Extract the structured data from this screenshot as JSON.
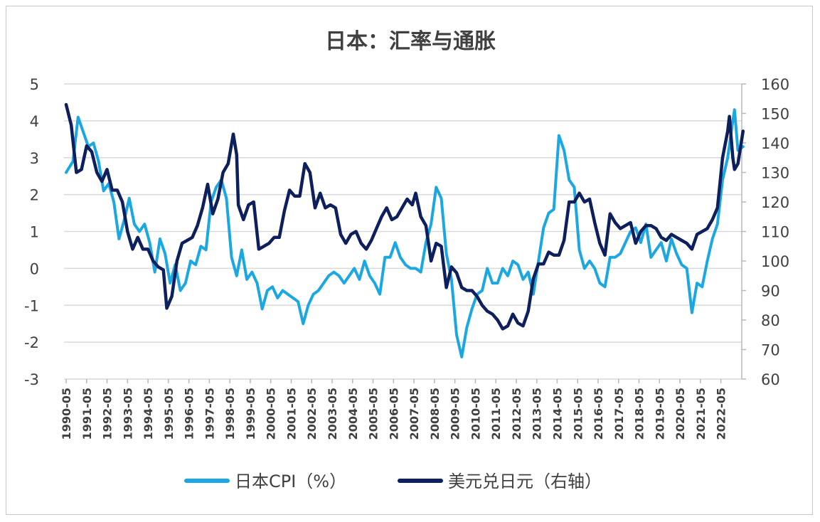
{
  "chart_data": {
    "type": "line",
    "title": "日本：汇率与通胀",
    "x_tick_labels": [
      "1990-05",
      "1991-05",
      "1992-05",
      "1993-05",
      "1994-05",
      "1995-05",
      "1996-05",
      "1997-05",
      "1998-05",
      "1999-05",
      "2000-05",
      "2001-05",
      "2002-05",
      "2003-05",
      "2004-05",
      "2005-05",
      "2006-05",
      "2007-05",
      "2008-05",
      "2009-05",
      "2010-05",
      "2011-05",
      "2012-05",
      "2013-05",
      "2014-05",
      "2015-05",
      "2016-05",
      "2017-05",
      "2018-05",
      "2019-05",
      "2020-05",
      "2021-05",
      "2022-05"
    ],
    "x_start": "1990-05",
    "y_left": {
      "range": [
        -3,
        5
      ],
      "ticks": [
        -3,
        -2,
        -1,
        0,
        1,
        2,
        3,
        4,
        5
      ]
    },
    "y_right": {
      "range": [
        60,
        160
      ],
      "ticks": [
        60,
        70,
        80,
        90,
        100,
        110,
        120,
        130,
        140,
        150,
        160
      ]
    },
    "grid": "horizontal",
    "legend_position": "bottom",
    "series": [
      {
        "name": "日本CPI（%）",
        "axis": "left",
        "color": "#1ba7e2",
        "points": [
          [
            "1990-05",
            2.6
          ],
          [
            "1990-09",
            2.9
          ],
          [
            "1990-12",
            4.1
          ],
          [
            "1991-03",
            3.7
          ],
          [
            "1991-06",
            3.3
          ],
          [
            "1991-09",
            3.4
          ],
          [
            "1991-12",
            2.9
          ],
          [
            "1992-03",
            2.1
          ],
          [
            "1992-06",
            2.3
          ],
          [
            "1992-09",
            1.8
          ],
          [
            "1992-12",
            0.8
          ],
          [
            "1993-03",
            1.3
          ],
          [
            "1993-06",
            1.9
          ],
          [
            "1993-09",
            1.2
          ],
          [
            "1993-12",
            1.0
          ],
          [
            "1994-03",
            1.2
          ],
          [
            "1994-06",
            0.7
          ],
          [
            "1994-09",
            -0.1
          ],
          [
            "1994-12",
            0.8
          ],
          [
            "1995-03",
            0.4
          ],
          [
            "1995-06",
            -0.4
          ],
          [
            "1995-09",
            0.1
          ],
          [
            "1995-12",
            -0.6
          ],
          [
            "1996-03",
            -0.4
          ],
          [
            "1996-06",
            0.2
          ],
          [
            "1996-09",
            0.1
          ],
          [
            "1996-12",
            0.6
          ],
          [
            "1997-03",
            0.5
          ],
          [
            "1997-06",
            1.8
          ],
          [
            "1997-09",
            2.2
          ],
          [
            "1997-12",
            2.4
          ],
          [
            "1998-03",
            1.9
          ],
          [
            "1998-06",
            0.3
          ],
          [
            "1998-09",
            -0.2
          ],
          [
            "1998-12",
            0.5
          ],
          [
            "1999-03",
            -0.3
          ],
          [
            "1999-06",
            -0.1
          ],
          [
            "1999-09",
            -0.4
          ],
          [
            "1999-12",
            -1.1
          ],
          [
            "2000-03",
            -0.6
          ],
          [
            "2000-06",
            -0.5
          ],
          [
            "2000-09",
            -0.8
          ],
          [
            "2000-12",
            -0.6
          ],
          [
            "2001-03",
            -0.7
          ],
          [
            "2001-06",
            -0.8
          ],
          [
            "2001-09",
            -0.9
          ],
          [
            "2001-12",
            -1.5
          ],
          [
            "2002-03",
            -1.0
          ],
          [
            "2002-06",
            -0.7
          ],
          [
            "2002-09",
            -0.6
          ],
          [
            "2002-12",
            -0.4
          ],
          [
            "2003-03",
            -0.2
          ],
          [
            "2003-06",
            -0.1
          ],
          [
            "2003-09",
            -0.2
          ],
          [
            "2003-12",
            -0.4
          ],
          [
            "2004-03",
            -0.2
          ],
          [
            "2004-06",
            0.0
          ],
          [
            "2004-09",
            -0.3
          ],
          [
            "2004-12",
            0.2
          ],
          [
            "2005-03",
            -0.2
          ],
          [
            "2005-06",
            -0.4
          ],
          [
            "2005-09",
            -0.7
          ],
          [
            "2005-12",
            0.3
          ],
          [
            "2006-03",
            0.3
          ],
          [
            "2006-06",
            0.7
          ],
          [
            "2006-09",
            0.3
          ],
          [
            "2006-12",
            0.1
          ],
          [
            "2007-03",
            0.0
          ],
          [
            "2007-06",
            0.0
          ],
          [
            "2007-09",
            -0.1
          ],
          [
            "2007-12",
            0.7
          ],
          [
            "2008-03",
            1.2
          ],
          [
            "2008-06",
            2.2
          ],
          [
            "2008-09",
            1.9
          ],
          [
            "2008-12",
            0.4
          ],
          [
            "2009-03",
            -0.3
          ],
          [
            "2009-06",
            -1.8
          ],
          [
            "2009-09",
            -2.4
          ],
          [
            "2009-12",
            -1.6
          ],
          [
            "2010-03",
            -1.1
          ],
          [
            "2010-06",
            -0.7
          ],
          [
            "2010-09",
            -0.6
          ],
          [
            "2010-12",
            0.0
          ],
          [
            "2011-03",
            -0.4
          ],
          [
            "2011-06",
            -0.4
          ],
          [
            "2011-09",
            0.0
          ],
          [
            "2011-12",
            -0.2
          ],
          [
            "2012-03",
            0.2
          ],
          [
            "2012-06",
            0.1
          ],
          [
            "2012-09",
            -0.3
          ],
          [
            "2012-12",
            -0.1
          ],
          [
            "2013-03",
            -0.7
          ],
          [
            "2013-06",
            0.2
          ],
          [
            "2013-09",
            1.1
          ],
          [
            "2013-12",
            1.5
          ],
          [
            "2014-03",
            1.6
          ],
          [
            "2014-06",
            3.6
          ],
          [
            "2014-09",
            3.2
          ],
          [
            "2014-12",
            2.4
          ],
          [
            "2015-03",
            2.2
          ],
          [
            "2015-06",
            0.5
          ],
          [
            "2015-09",
            0.0
          ],
          [
            "2015-12",
            0.2
          ],
          [
            "2016-03",
            0.0
          ],
          [
            "2016-06",
            -0.4
          ],
          [
            "2016-09",
            -0.5
          ],
          [
            "2016-12",
            0.3
          ],
          [
            "2017-03",
            0.3
          ],
          [
            "2017-06",
            0.4
          ],
          [
            "2017-09",
            0.7
          ],
          [
            "2017-12",
            1.0
          ],
          [
            "2018-03",
            1.1
          ],
          [
            "2018-06",
            0.7
          ],
          [
            "2018-09",
            1.2
          ],
          [
            "2018-12",
            0.3
          ],
          [
            "2019-03",
            0.5
          ],
          [
            "2019-06",
            0.7
          ],
          [
            "2019-09",
            0.2
          ],
          [
            "2019-12",
            0.8
          ],
          [
            "2020-03",
            0.4
          ],
          [
            "2020-06",
            0.1
          ],
          [
            "2020-09",
            0.0
          ],
          [
            "2020-12",
            -1.2
          ],
          [
            "2021-03",
            -0.4
          ],
          [
            "2021-06",
            -0.5
          ],
          [
            "2021-09",
            0.2
          ],
          [
            "2021-12",
            0.8
          ],
          [
            "2022-03",
            1.2
          ],
          [
            "2022-06",
            2.4
          ],
          [
            "2022-09",
            3.0
          ],
          [
            "2022-12",
            4.0
          ],
          [
            "2023-01",
            4.3
          ],
          [
            "2023-03",
            3.2
          ],
          [
            "2023-06",
            3.3
          ]
        ]
      },
      {
        "name": "美元兑日元（右轴）",
        "axis": "right",
        "color": "#0d1f5c",
        "points": [
          [
            "1990-05",
            153
          ],
          [
            "1990-08",
            146
          ],
          [
            "1990-11",
            130
          ],
          [
            "1991-02",
            131
          ],
          [
            "1991-05",
            139
          ],
          [
            "1991-08",
            137
          ],
          [
            "1991-11",
            130
          ],
          [
            "1992-02",
            127
          ],
          [
            "1992-05",
            131
          ],
          [
            "1992-08",
            124
          ],
          [
            "1992-11",
            124
          ],
          [
            "1993-02",
            120
          ],
          [
            "1993-05",
            110
          ],
          [
            "1993-08",
            104
          ],
          [
            "1993-11",
            108
          ],
          [
            "1994-02",
            104
          ],
          [
            "1994-05",
            104
          ],
          [
            "1994-08",
            100
          ],
          [
            "1994-11",
            98
          ],
          [
            "1995-02",
            97
          ],
          [
            "1995-04",
            84
          ],
          [
            "1995-07",
            88
          ],
          [
            "1995-10",
            100
          ],
          [
            "1996-01",
            106
          ],
          [
            "1996-04",
            107
          ],
          [
            "1996-07",
            108
          ],
          [
            "1996-10",
            112
          ],
          [
            "1997-01",
            118
          ],
          [
            "1997-04",
            126
          ],
          [
            "1997-07",
            116
          ],
          [
            "1997-10",
            121
          ],
          [
            "1998-01",
            130
          ],
          [
            "1998-04",
            133
          ],
          [
            "1998-07",
            143
          ],
          [
            "1998-09",
            136
          ],
          [
            "1998-10",
            119
          ],
          [
            "1999-01",
            114
          ],
          [
            "1999-04",
            119
          ],
          [
            "1999-07",
            120
          ],
          [
            "1999-10",
            104
          ],
          [
            "2000-01",
            105
          ],
          [
            "2000-04",
            106
          ],
          [
            "2000-07",
            108
          ],
          [
            "2000-10",
            108
          ],
          [
            "2001-01",
            117
          ],
          [
            "2001-04",
            124
          ],
          [
            "2001-07",
            122
          ],
          [
            "2001-10",
            122
          ],
          [
            "2002-01",
            133
          ],
          [
            "2002-04",
            130
          ],
          [
            "2002-07",
            118
          ],
          [
            "2002-10",
            123
          ],
          [
            "2003-01",
            118
          ],
          [
            "2003-04",
            119
          ],
          [
            "2003-07",
            118
          ],
          [
            "2003-10",
            109
          ],
          [
            "2004-01",
            106
          ],
          [
            "2004-04",
            109
          ],
          [
            "2004-07",
            110
          ],
          [
            "2004-10",
            106
          ],
          [
            "2005-01",
            104
          ],
          [
            "2005-04",
            107
          ],
          [
            "2005-07",
            111
          ],
          [
            "2005-10",
            115
          ],
          [
            "2006-01",
            118
          ],
          [
            "2006-04",
            114
          ],
          [
            "2006-07",
            115
          ],
          [
            "2006-10",
            118
          ],
          [
            "2007-01",
            121
          ],
          [
            "2007-04",
            119
          ],
          [
            "2007-06",
            123
          ],
          [
            "2007-09",
            115
          ],
          [
            "2007-12",
            112
          ],
          [
            "2008-03",
            100
          ],
          [
            "2008-06",
            106
          ],
          [
            "2008-09",
            105
          ],
          [
            "2008-12",
            91
          ],
          [
            "2009-03",
            98
          ],
          [
            "2009-06",
            96
          ],
          [
            "2009-09",
            91
          ],
          [
            "2009-12",
            90
          ],
          [
            "2010-03",
            90
          ],
          [
            "2010-06",
            88
          ],
          [
            "2010-09",
            85
          ],
          [
            "2010-12",
            83
          ],
          [
            "2011-03",
            82
          ],
          [
            "2011-06",
            80
          ],
          [
            "2011-09",
            77
          ],
          [
            "2011-12",
            78
          ],
          [
            "2012-03",
            82
          ],
          [
            "2012-06",
            79
          ],
          [
            "2012-09",
            78
          ],
          [
            "2012-12",
            83
          ],
          [
            "2013-03",
            94
          ],
          [
            "2013-06",
            99
          ],
          [
            "2013-09",
            99
          ],
          [
            "2013-12",
            103
          ],
          [
            "2014-03",
            102
          ],
          [
            "2014-06",
            102
          ],
          [
            "2014-09",
            107
          ],
          [
            "2014-12",
            120
          ],
          [
            "2015-03",
            120
          ],
          [
            "2015-06",
            123
          ],
          [
            "2015-09",
            120
          ],
          [
            "2015-12",
            121
          ],
          [
            "2016-03",
            113
          ],
          [
            "2016-06",
            106
          ],
          [
            "2016-09",
            102
          ],
          [
            "2016-12",
            116
          ],
          [
            "2017-03",
            113
          ],
          [
            "2017-06",
            111
          ],
          [
            "2017-09",
            112
          ],
          [
            "2017-12",
            113
          ],
          [
            "2018-03",
            106
          ],
          [
            "2018-06",
            110
          ],
          [
            "2018-09",
            112
          ],
          [
            "2018-12",
            112
          ],
          [
            "2019-03",
            111
          ],
          [
            "2019-06",
            108
          ],
          [
            "2019-09",
            107
          ],
          [
            "2019-12",
            109
          ],
          [
            "2020-03",
            108
          ],
          [
            "2020-06",
            107
          ],
          [
            "2020-09",
            106
          ],
          [
            "2020-12",
            104
          ],
          [
            "2021-03",
            109
          ],
          [
            "2021-06",
            110
          ],
          [
            "2021-09",
            111
          ],
          [
            "2021-12",
            114
          ],
          [
            "2022-03",
            118
          ],
          [
            "2022-06",
            135
          ],
          [
            "2022-09",
            144
          ],
          [
            "2022-10",
            149
          ],
          [
            "2022-12",
            135
          ],
          [
            "2023-01",
            131
          ],
          [
            "2023-03",
            133
          ],
          [
            "2023-06",
            144
          ]
        ]
      }
    ]
  }
}
